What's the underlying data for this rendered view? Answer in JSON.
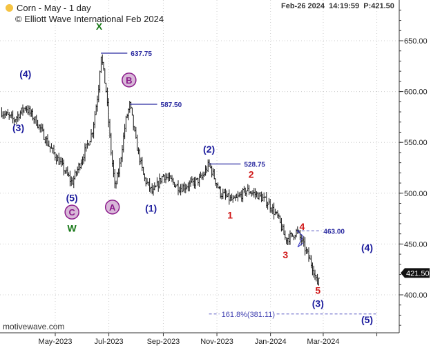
{
  "header": {
    "symbol": "Corn - May - 1 day",
    "copyright": "© Elliott Wave International Feb 2024",
    "status": "Feb-26 2024  14:19:59  P:421.50",
    "watermark": "motivewave.com",
    "dot_color": "#f5c342"
  },
  "chart_data": {
    "type": "bar",
    "title": "Corn - May - 1 day",
    "ylim": [
      355,
      680
    ],
    "yticks": [
      400,
      450,
      500,
      550,
      600,
      650
    ],
    "ytick_labels": [
      "400.00",
      "450.00",
      "500.00",
      "550.00",
      "600.00",
      "650.00"
    ],
    "xtick_dates": [
      "2023-05-01",
      "2023-07-01",
      "2023-09-01",
      "2023-11-01",
      "2024-01-01",
      "2024-03-01",
      "2024-05-01"
    ],
    "xtick_labels": [
      "May-2023",
      "Jul-2023",
      "Sep-2023",
      "Nov-2023",
      "Jan-2024",
      "Mar-2024",
      ""
    ],
    "grid": true,
    "last_price": "421.50",
    "series": [
      [
        "2023-03-01",
        580
      ],
      [
        "2023-03-15",
        572
      ],
      [
        "2023-03-28",
        585
      ],
      [
        "2023-04-10",
        570
      ],
      [
        "2023-04-25",
        545
      ],
      [
        "2023-05-10",
        525
      ],
      [
        "2023-05-20",
        510
      ],
      [
        "2023-06-01",
        535
      ],
      [
        "2023-06-12",
        560
      ],
      [
        "2023-06-19",
        600
      ],
      [
        "2023-06-22",
        637.75
      ],
      [
        "2023-06-28",
        600
      ],
      [
        "2023-07-03",
        545
      ],
      [
        "2023-07-08",
        505
      ],
      [
        "2023-07-13",
        525
      ],
      [
        "2023-07-20",
        570
      ],
      [
        "2023-07-25",
        587.5
      ],
      [
        "2023-08-01",
        550
      ],
      [
        "2023-08-10",
        515
      ],
      [
        "2023-08-20",
        500
      ],
      [
        "2023-09-01",
        518
      ],
      [
        "2023-09-20",
        505
      ],
      [
        "2023-10-05",
        510
      ],
      [
        "2023-10-15",
        515
      ],
      [
        "2023-10-23",
        528.75
      ],
      [
        "2023-11-05",
        500
      ],
      [
        "2023-11-20",
        492
      ],
      [
        "2023-12-05",
        503
      ],
      [
        "2023-12-18",
        498
      ],
      [
        "2023-12-30",
        490
      ],
      [
        "2024-01-10",
        475
      ],
      [
        "2024-01-18",
        455
      ],
      [
        "2024-01-26",
        458
      ],
      [
        "2024-01-31",
        463
      ],
      [
        "2024-02-06",
        452
      ],
      [
        "2024-02-12",
        440
      ],
      [
        "2024-02-19",
        425
      ],
      [
        "2024-02-23",
        410
      ],
      [
        "2024-02-26",
        421.5
      ]
    ],
    "levels": [
      {
        "label": "637.75",
        "value": 637.75,
        "from": "2023-06-22",
        "to": "2023-07-22",
        "style": "solid"
      },
      {
        "label": "587.50",
        "value": 587.5,
        "from": "2023-07-25",
        "to": "2023-08-25",
        "style": "solid"
      },
      {
        "label": "528.75",
        "value": 528.75,
        "from": "2023-10-23",
        "to": "2023-11-28",
        "style": "solid"
      },
      {
        "label": "463.00",
        "value": 463,
        "from": "2024-01-31",
        "to": "2024-02-28",
        "style": "dashed"
      },
      {
        "label": "161.8%(381.11)",
        "value": 381.11,
        "from": "2023-10-23",
        "to": "2024-05-01",
        "style": "dashed"
      }
    ],
    "wave_labels": [
      {
        "text": "(4)",
        "date": "2023-03-28",
        "price": 614,
        "color": "#1a1a9c",
        "circle": false
      },
      {
        "text": "(3)",
        "date": "2023-03-20",
        "price": 561,
        "color": "#1a1a9c",
        "circle": false
      },
      {
        "text": "(5)",
        "date": "2023-05-20",
        "price": 492,
        "color": "#1a1a9c",
        "circle": false
      },
      {
        "text": "C",
        "date": "2023-05-20",
        "price": 478,
        "color": "#8b1a8b",
        "circle": true
      },
      {
        "text": "W",
        "date": "2023-05-20",
        "price": 462,
        "color": "#1a7a1a",
        "circle": false
      },
      {
        "text": "X",
        "date": "2023-06-20",
        "price": 661,
        "color": "#1a7a1a",
        "circle": false
      },
      {
        "text": "A",
        "date": "2023-07-05",
        "price": 483,
        "color": "#8b1a8b",
        "circle": true
      },
      {
        "text": "B",
        "date": "2023-07-24",
        "price": 608,
        "color": "#8b1a8b",
        "circle": true
      },
      {
        "text": "(1)",
        "date": "2023-08-18",
        "price": 482,
        "color": "#1a1a9c",
        "circle": false
      },
      {
        "text": "(2)",
        "date": "2023-10-23",
        "price": 540,
        "color": "#1a1a9c",
        "circle": false
      },
      {
        "text": "1",
        "date": "2023-11-16",
        "price": 475,
        "color": "#d01818",
        "circle": false
      },
      {
        "text": "2",
        "date": "2023-12-10",
        "price": 515,
        "color": "#d01818",
        "circle": false
      },
      {
        "text": "3",
        "date": "2024-01-18",
        "price": 436,
        "color": "#d01818",
        "circle": false
      },
      {
        "text": "4",
        "date": "2024-02-06",
        "price": 464,
        "color": "#d01818",
        "circle": false
      },
      {
        "text": "5",
        "date": "2024-02-24",
        "price": 401,
        "color": "#d01818",
        "circle": false
      },
      {
        "text": "(3)",
        "date": "2024-02-24",
        "price": 388,
        "color": "#1a1a9c",
        "circle": false
      },
      {
        "text": "(4)",
        "date": "2024-04-20",
        "price": 443,
        "color": "#1a1a9c",
        "circle": false
      },
      {
        "text": "(5)",
        "date": "2024-04-20",
        "price": 372,
        "color": "#1a1a9c",
        "circle": false
      }
    ]
  }
}
